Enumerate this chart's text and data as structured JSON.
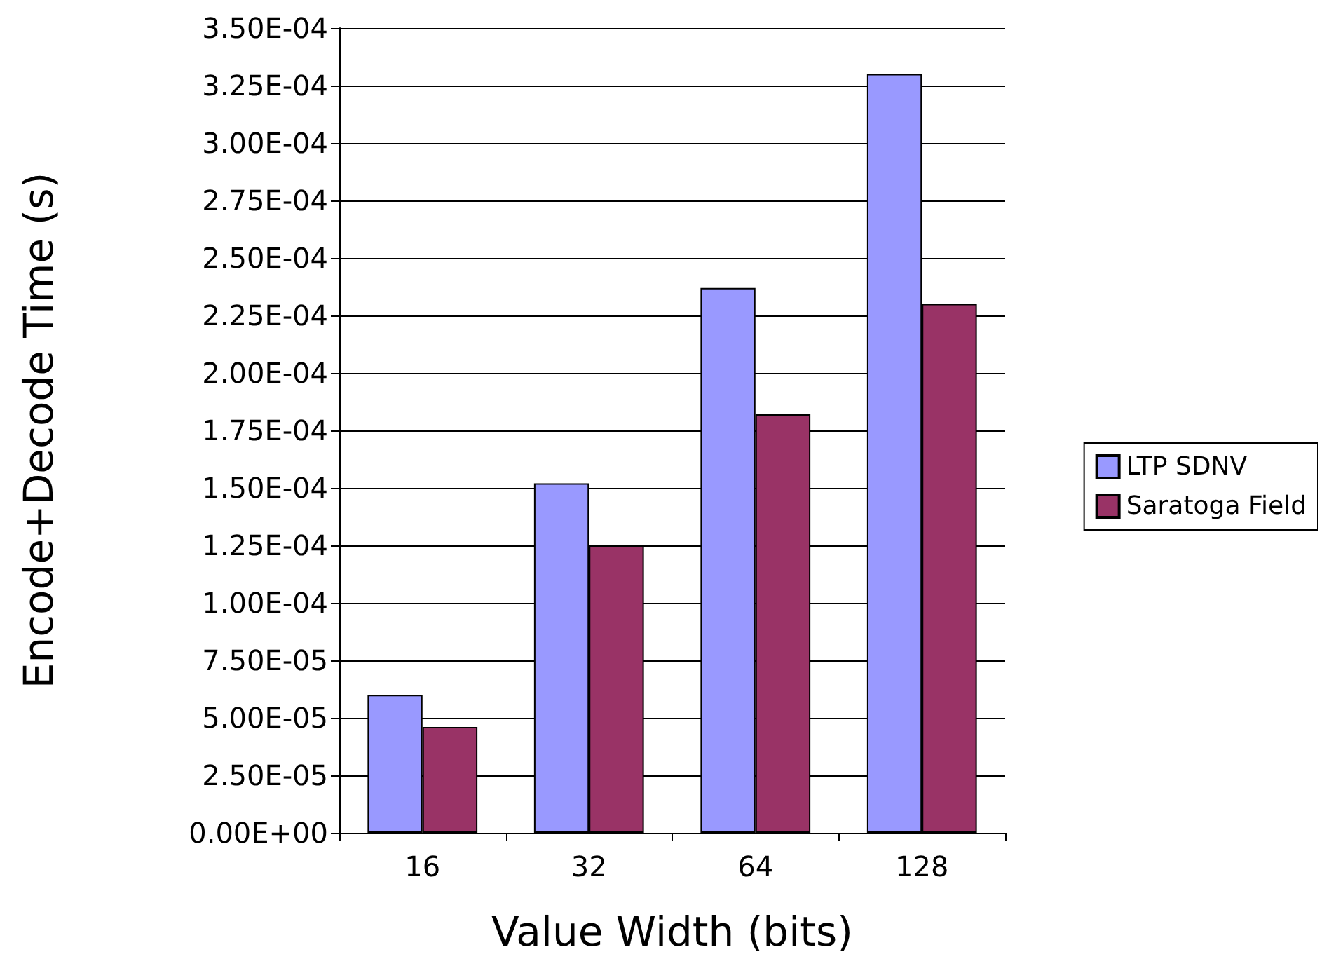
{
  "chart_data": {
    "type": "bar",
    "xlabel": "Value Width (bits)",
    "ylabel": "Encode+Decode Time (s)",
    "categories": [
      "16",
      "32",
      "64",
      "128"
    ],
    "series": [
      {
        "name": "LTP SDNV",
        "color": "#9999ff",
        "values": [
          6e-05,
          0.000152,
          0.000237,
          0.00033
        ]
      },
      {
        "name": "Saratoga Field",
        "color": "#993366",
        "values": [
          4.6e-05,
          0.000125,
          0.000182,
          0.00023
        ]
      }
    ],
    "ylim": [
      0,
      0.00035
    ],
    "yticks": [
      {
        "value": 0,
        "label": "0.00E+00"
      },
      {
        "value": 2.5e-05,
        "label": "2.50E-05"
      },
      {
        "value": 5e-05,
        "label": "5.00E-05"
      },
      {
        "value": 7.5e-05,
        "label": "7.50E-05"
      },
      {
        "value": 0.0001,
        "label": "1.00E-04"
      },
      {
        "value": 0.000125,
        "label": "1.25E-04"
      },
      {
        "value": 0.00015,
        "label": "1.50E-04"
      },
      {
        "value": 0.000175,
        "label": "1.75E-04"
      },
      {
        "value": 0.0002,
        "label": "2.00E-04"
      },
      {
        "value": 0.000225,
        "label": "2.25E-04"
      },
      {
        "value": 0.00025,
        "label": "2.50E-04"
      },
      {
        "value": 0.000275,
        "label": "2.75E-04"
      },
      {
        "value": 0.0003,
        "label": "3.00E-04"
      },
      {
        "value": 0.000325,
        "label": "3.25E-04"
      },
      {
        "value": 0.00035,
        "label": "3.50E-04"
      }
    ],
    "grid": "y",
    "legend": "right"
  }
}
